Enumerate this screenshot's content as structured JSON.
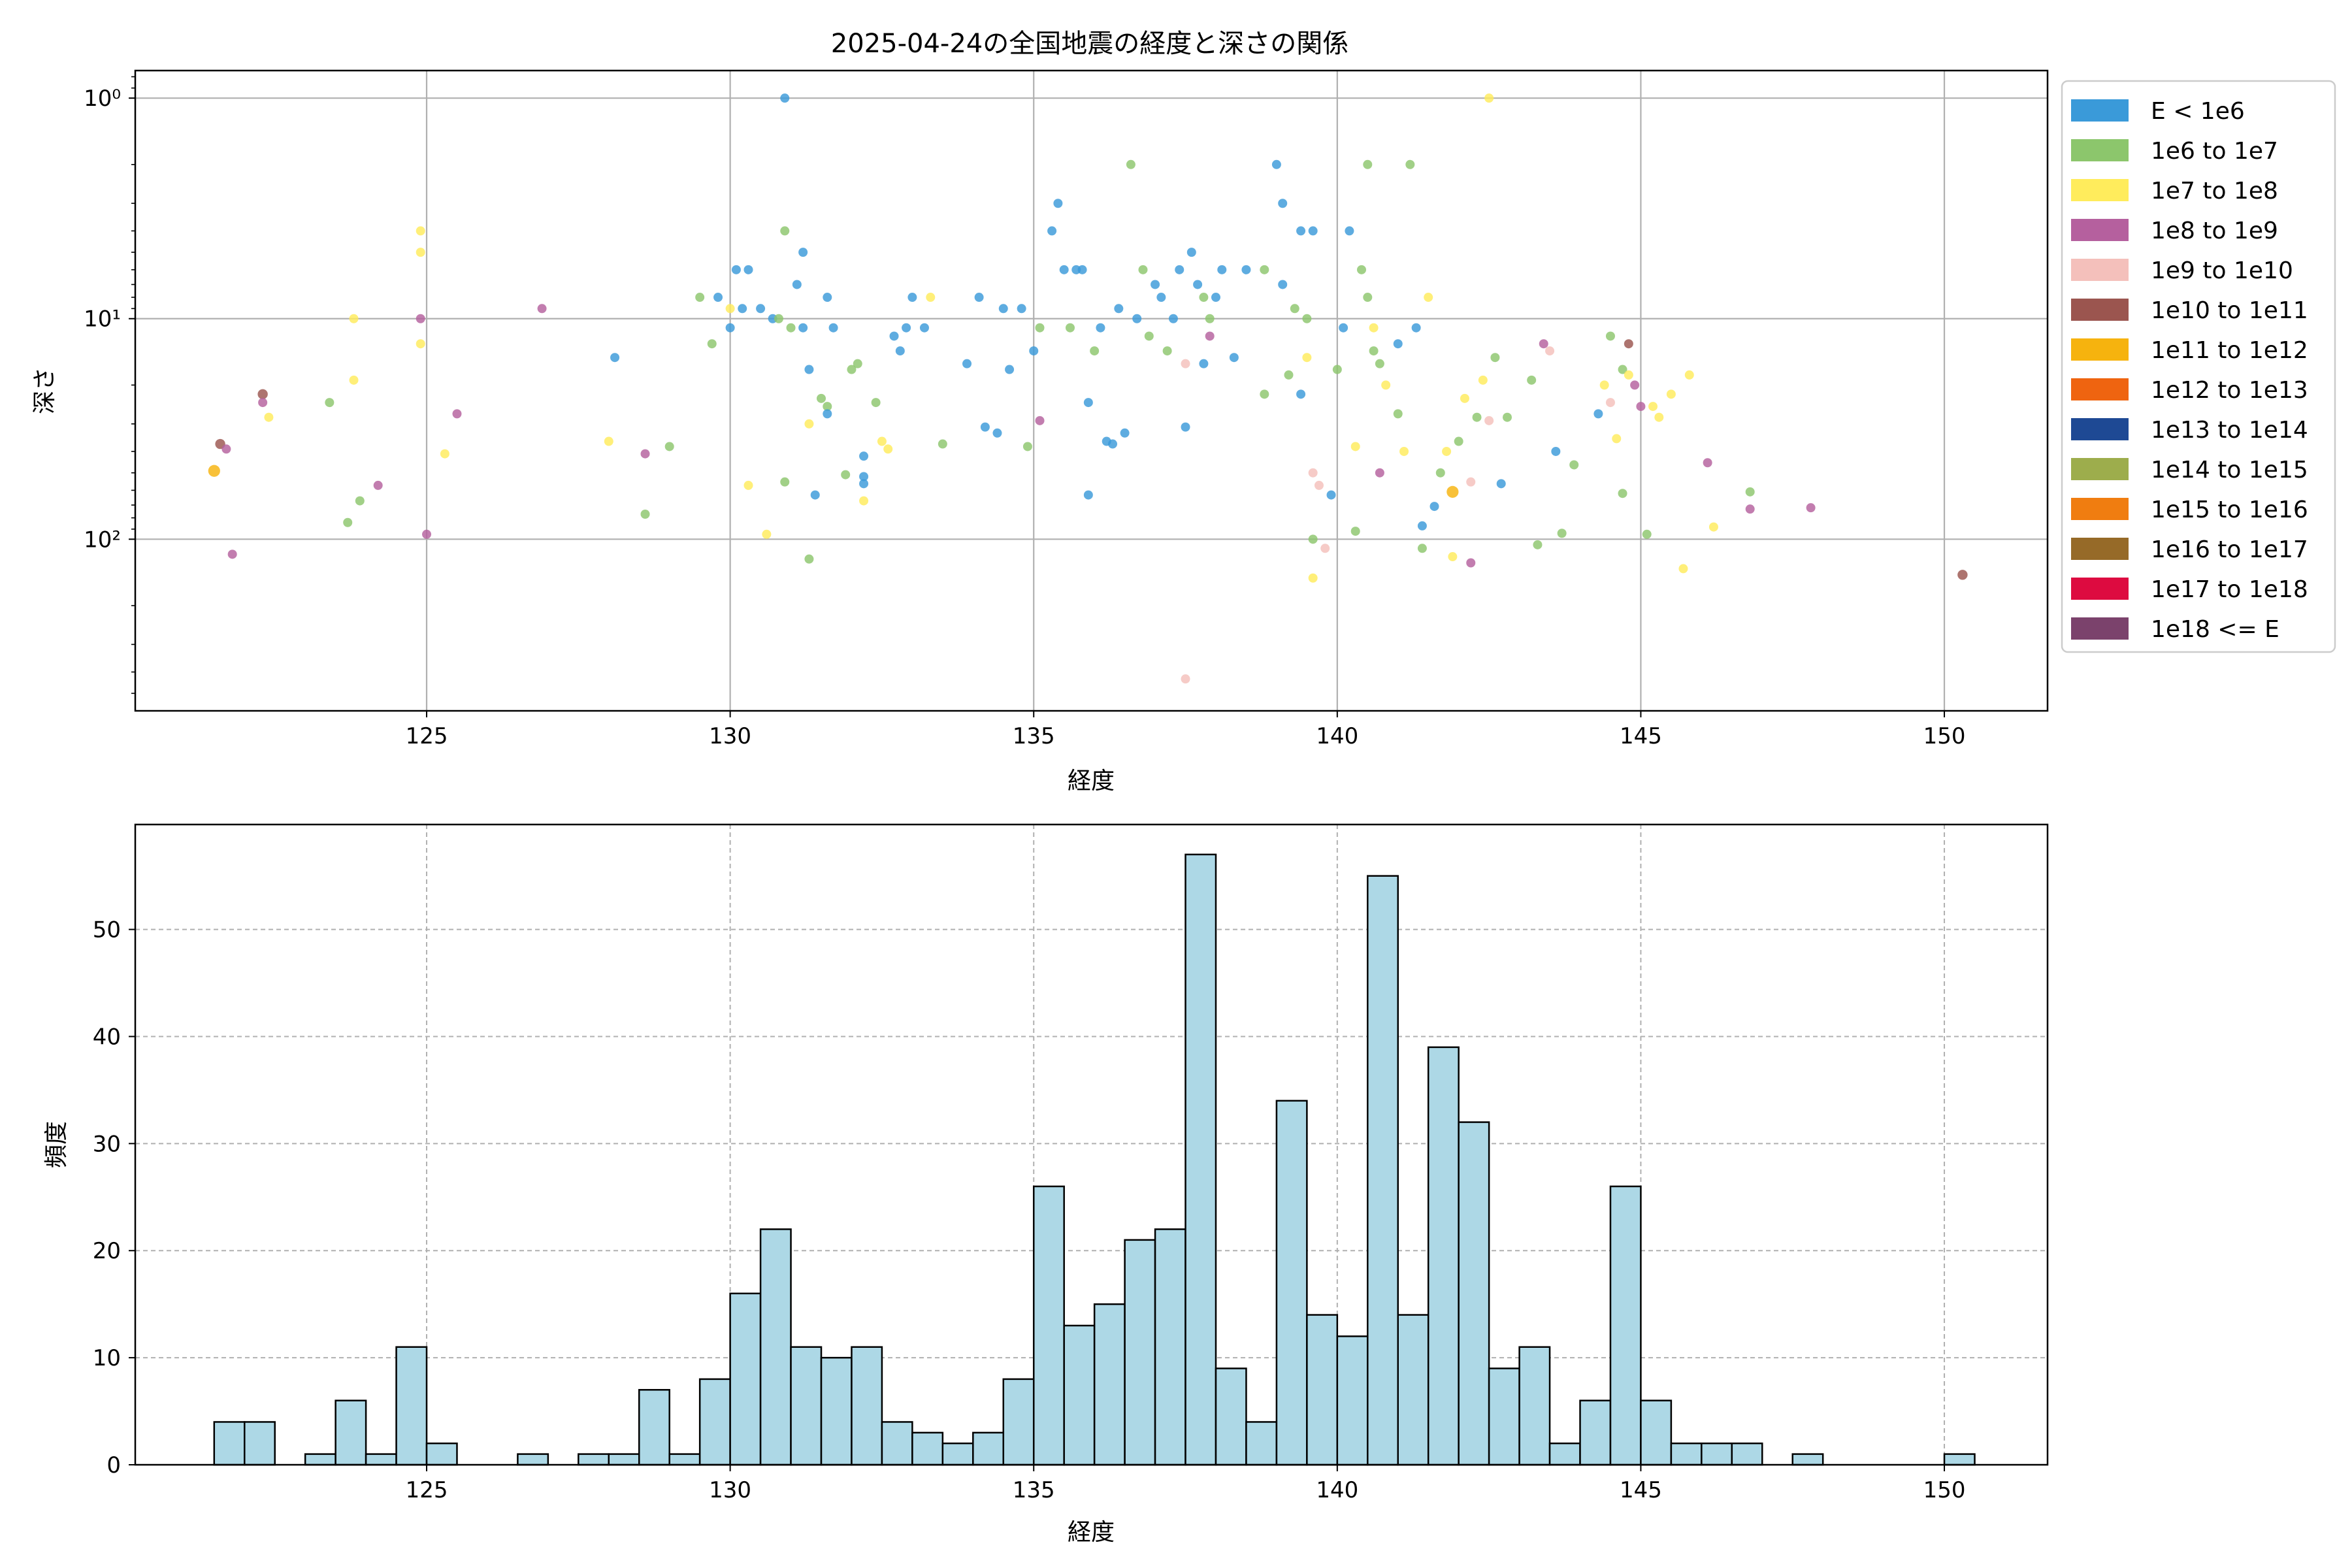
{
  "chart_data": [
    {
      "type": "scatter",
      "title": "2025-04-24の全国地震の経度と深さの関係",
      "xlabel": "経度",
      "ylabel": "深さ",
      "xlim": [
        120.2,
        151.7
      ],
      "ylim": [
        600,
        0.75
      ],
      "yscale": "log",
      "y_inverted": true,
      "xticks": [
        125,
        130,
        135,
        140,
        145,
        150
      ],
      "yticks": [
        {
          "value": 1,
          "label": "10⁰"
        },
        {
          "value": 10,
          "label": "10¹"
        },
        {
          "value": 100,
          "label": "10²"
        }
      ],
      "grid": true,
      "legend_position": "outside-right",
      "legend": [
        {
          "label": "E < 1e6",
          "color": "#3a9ad9"
        },
        {
          "label": "1e6 to 1e7",
          "color": "#8cc66c"
        },
        {
          "label": "1e7 to 1e8",
          "color": "#ffec5c"
        },
        {
          "label": "1e8 to 1e9",
          "color": "#b5609e"
        },
        {
          "label": "1e9 to 1e10",
          "color": "#f4c0bb"
        },
        {
          "label": "1e10 to 1e11",
          "color": "#9b554f"
        },
        {
          "label": "1e11 to 1e12",
          "color": "#f6b30e"
        },
        {
          "label": "1e12 to 1e13",
          "color": "#ef6410"
        },
        {
          "label": "1e13 to 1e14",
          "color": "#1e4994"
        },
        {
          "label": "1e14 to 1e15",
          "color": "#9dad4c"
        },
        {
          "label": "1e15 to 1e16",
          "color": "#f07d10"
        },
        {
          "label": "1e16 to 1e17",
          "color": "#966a28"
        },
        {
          "label": "1e17 to 1e18",
          "color": "#dd0b40"
        },
        {
          "label": "1e18 <= E",
          "color": "#7b426c"
        }
      ],
      "points": [
        {
          "x": 121.5,
          "y": 49,
          "c": 6,
          "s": 1.3
        },
        {
          "x": 121.6,
          "y": 37,
          "c": 5,
          "s": 1.1
        },
        {
          "x": 121.7,
          "y": 39,
          "c": 3
        },
        {
          "x": 121.8,
          "y": 117,
          "c": 3
        },
        {
          "x": 122.3,
          "y": 22,
          "c": 5,
          "s": 1.1
        },
        {
          "x": 122.3,
          "y": 24,
          "c": 3
        },
        {
          "x": 122.4,
          "y": 28,
          "c": 2
        },
        {
          "x": 123.4,
          "y": 24,
          "c": 1
        },
        {
          "x": 123.7,
          "y": 84,
          "c": 1
        },
        {
          "x": 123.8,
          "y": 10,
          "c": 2
        },
        {
          "x": 123.8,
          "y": 19,
          "c": 2
        },
        {
          "x": 123.9,
          "y": 67,
          "c": 1
        },
        {
          "x": 124.2,
          "y": 57,
          "c": 3
        },
        {
          "x": 124.9,
          "y": 4,
          "c": 2
        },
        {
          "x": 124.9,
          "y": 5,
          "c": 2
        },
        {
          "x": 124.9,
          "y": 10,
          "c": 3
        },
        {
          "x": 124.9,
          "y": 13,
          "c": 2
        },
        {
          "x": 125.0,
          "y": 95,
          "c": 3
        },
        {
          "x": 125.3,
          "y": 41,
          "c": 2
        },
        {
          "x": 125.5,
          "y": 27,
          "c": 3
        },
        {
          "x": 126.9,
          "y": 9,
          "c": 3
        },
        {
          "x": 128.0,
          "y": 36,
          "c": 2
        },
        {
          "x": 128.1,
          "y": 15,
          "c": 0
        },
        {
          "x": 128.6,
          "y": 41,
          "c": 3
        },
        {
          "x": 128.6,
          "y": 77,
          "c": 1
        },
        {
          "x": 129.0,
          "y": 38,
          "c": 1
        },
        {
          "x": 129.5,
          "y": 8,
          "c": 1
        },
        {
          "x": 129.7,
          "y": 13,
          "c": 1
        },
        {
          "x": 129.8,
          "y": 8,
          "c": 0
        },
        {
          "x": 130.0,
          "y": 9,
          "c": 2
        },
        {
          "x": 130.0,
          "y": 11,
          "c": 0
        },
        {
          "x": 130.1,
          "y": 6,
          "c": 0
        },
        {
          "x": 130.2,
          "y": 9,
          "c": 0
        },
        {
          "x": 130.3,
          "y": 57,
          "c": 2
        },
        {
          "x": 130.3,
          "y": 6,
          "c": 0
        },
        {
          "x": 130.5,
          "y": 9,
          "c": 0
        },
        {
          "x": 130.6,
          "y": 95,
          "c": 2
        },
        {
          "x": 130.7,
          "y": 10,
          "c": 0
        },
        {
          "x": 130.8,
          "y": 10,
          "c": 1
        },
        {
          "x": 130.9,
          "y": 4,
          "c": 1
        },
        {
          "x": 130.9,
          "y": 55,
          "c": 1
        },
        {
          "x": 130.9,
          "y": 1,
          "c": 0
        },
        {
          "x": 131.0,
          "y": 11,
          "c": 1
        },
        {
          "x": 131.1,
          "y": 7,
          "c": 0
        },
        {
          "x": 131.2,
          "y": 5,
          "c": 0
        },
        {
          "x": 131.2,
          "y": 11,
          "c": 0
        },
        {
          "x": 131.3,
          "y": 123,
          "c": 1
        },
        {
          "x": 131.3,
          "y": 30,
          "c": 2
        },
        {
          "x": 131.3,
          "y": 17,
          "c": 0
        },
        {
          "x": 131.4,
          "y": 63,
          "c": 0
        },
        {
          "x": 131.5,
          "y": 23,
          "c": 1
        },
        {
          "x": 131.6,
          "y": 25,
          "c": 1
        },
        {
          "x": 131.6,
          "y": 27,
          "c": 0
        },
        {
          "x": 131.6,
          "y": 8,
          "c": 0
        },
        {
          "x": 131.7,
          "y": 11,
          "c": 0
        },
        {
          "x": 131.9,
          "y": 51,
          "c": 1
        },
        {
          "x": 132.0,
          "y": 17,
          "c": 1
        },
        {
          "x": 132.1,
          "y": 16,
          "c": 1
        },
        {
          "x": 132.2,
          "y": 42,
          "c": 0
        },
        {
          "x": 132.2,
          "y": 52,
          "c": 0
        },
        {
          "x": 132.2,
          "y": 56,
          "c": 0
        },
        {
          "x": 132.2,
          "y": 67,
          "c": 2
        },
        {
          "x": 132.4,
          "y": 24,
          "c": 1
        },
        {
          "x": 132.5,
          "y": 36,
          "c": 2
        },
        {
          "x": 132.6,
          "y": 39,
          "c": 2
        },
        {
          "x": 132.7,
          "y": 12,
          "c": 0
        },
        {
          "x": 132.8,
          "y": 14,
          "c": 0
        },
        {
          "x": 132.9,
          "y": 11,
          "c": 0
        },
        {
          "x": 133.0,
          "y": 8,
          "c": 0
        },
        {
          "x": 133.2,
          "y": 11,
          "c": 0
        },
        {
          "x": 133.3,
          "y": 8,
          "c": 2
        },
        {
          "x": 133.5,
          "y": 37,
          "c": 1
        },
        {
          "x": 133.9,
          "y": 16,
          "c": 0
        },
        {
          "x": 134.1,
          "y": 8,
          "c": 0
        },
        {
          "x": 134.2,
          "y": 31,
          "c": 0
        },
        {
          "x": 134.4,
          "y": 33,
          "c": 0
        },
        {
          "x": 134.5,
          "y": 9,
          "c": 0
        },
        {
          "x": 134.6,
          "y": 17,
          "c": 0
        },
        {
          "x": 134.8,
          "y": 9,
          "c": 0
        },
        {
          "x": 134.9,
          "y": 38,
          "c": 1
        },
        {
          "x": 135.0,
          "y": 14,
          "c": 0
        },
        {
          "x": 135.1,
          "y": 11,
          "c": 1
        },
        {
          "x": 135.1,
          "y": 29,
          "c": 3
        },
        {
          "x": 135.3,
          "y": 4,
          "c": 0
        },
        {
          "x": 135.4,
          "y": 3,
          "c": 0
        },
        {
          "x": 135.5,
          "y": 6,
          "c": 0
        },
        {
          "x": 135.6,
          "y": 11,
          "c": 1
        },
        {
          "x": 135.7,
          "y": 6,
          "c": 0
        },
        {
          "x": 135.8,
          "y": 6,
          "c": 0
        },
        {
          "x": 135.9,
          "y": 24,
          "c": 0
        },
        {
          "x": 135.9,
          "y": 63,
          "c": 0
        },
        {
          "x": 136.0,
          "y": 14,
          "c": 1
        },
        {
          "x": 136.1,
          "y": 11,
          "c": 0
        },
        {
          "x": 136.2,
          "y": 36,
          "c": 0
        },
        {
          "x": 136.3,
          "y": 37,
          "c": 0
        },
        {
          "x": 136.4,
          "y": 9,
          "c": 0
        },
        {
          "x": 136.5,
          "y": 33,
          "c": 0
        },
        {
          "x": 136.6,
          "y": 2,
          "c": 1
        },
        {
          "x": 136.7,
          "y": 10,
          "c": 0
        },
        {
          "x": 136.8,
          "y": 6,
          "c": 1
        },
        {
          "x": 136.9,
          "y": 12,
          "c": 1
        },
        {
          "x": 137.0,
          "y": 7,
          "c": 0
        },
        {
          "x": 137.1,
          "y": 8,
          "c": 0
        },
        {
          "x": 137.2,
          "y": 14,
          "c": 1
        },
        {
          "x": 137.3,
          "y": 10,
          "c": 0
        },
        {
          "x": 137.4,
          "y": 6,
          "c": 0
        },
        {
          "x": 137.5,
          "y": 31,
          "c": 0
        },
        {
          "x": 137.5,
          "y": 16,
          "c": 4
        },
        {
          "x": 137.5,
          "y": 430,
          "c": 4
        },
        {
          "x": 137.6,
          "y": 5,
          "c": 0
        },
        {
          "x": 137.7,
          "y": 7,
          "c": 0
        },
        {
          "x": 137.8,
          "y": 8,
          "c": 1
        },
        {
          "x": 137.8,
          "y": 16,
          "c": 0
        },
        {
          "x": 137.9,
          "y": 10,
          "c": 1
        },
        {
          "x": 137.9,
          "y": 12,
          "c": 3
        },
        {
          "x": 138.0,
          "y": 8,
          "c": 0
        },
        {
          "x": 138.1,
          "y": 6,
          "c": 0
        },
        {
          "x": 138.3,
          "y": 15,
          "c": 0
        },
        {
          "x": 138.5,
          "y": 6,
          "c": 0
        },
        {
          "x": 138.8,
          "y": 6,
          "c": 1
        },
        {
          "x": 138.8,
          "y": 22,
          "c": 1
        },
        {
          "x": 139.0,
          "y": 2,
          "c": 0
        },
        {
          "x": 139.1,
          "y": 3,
          "c": 0
        },
        {
          "x": 139.1,
          "y": 7,
          "c": 0
        },
        {
          "x": 139.2,
          "y": 18,
          "c": 1
        },
        {
          "x": 139.3,
          "y": 9,
          "c": 1
        },
        {
          "x": 139.4,
          "y": 4,
          "c": 0
        },
        {
          "x": 139.4,
          "y": 22,
          "c": 0
        },
        {
          "x": 139.5,
          "y": 10,
          "c": 1
        },
        {
          "x": 139.5,
          "y": 15,
          "c": 2
        },
        {
          "x": 139.6,
          "y": 4,
          "c": 0
        },
        {
          "x": 139.6,
          "y": 50,
          "c": 4
        },
        {
          "x": 139.6,
          "y": 100,
          "c": 1
        },
        {
          "x": 139.6,
          "y": 150,
          "c": 2
        },
        {
          "x": 139.7,
          "y": 57,
          "c": 4
        },
        {
          "x": 139.8,
          "y": 110,
          "c": 4
        },
        {
          "x": 139.9,
          "y": 63,
          "c": 0
        },
        {
          "x": 140.0,
          "y": 17,
          "c": 1
        },
        {
          "x": 140.1,
          "y": 11,
          "c": 0
        },
        {
          "x": 140.2,
          "y": 4,
          "c": 0
        },
        {
          "x": 140.3,
          "y": 38,
          "c": 2
        },
        {
          "x": 140.3,
          "y": 92,
          "c": 1
        },
        {
          "x": 140.4,
          "y": 6,
          "c": 1
        },
        {
          "x": 140.5,
          "y": 8,
          "c": 1
        },
        {
          "x": 140.5,
          "y": 2,
          "c": 1
        },
        {
          "x": 140.6,
          "y": 11,
          "c": 2
        },
        {
          "x": 140.6,
          "y": 14,
          "c": 1
        },
        {
          "x": 140.7,
          "y": 50,
          "c": 3
        },
        {
          "x": 140.7,
          "y": 16,
          "c": 1
        },
        {
          "x": 140.8,
          "y": 20,
          "c": 2
        },
        {
          "x": 141.0,
          "y": 13,
          "c": 0
        },
        {
          "x": 141.0,
          "y": 27,
          "c": 1
        },
        {
          "x": 141.1,
          "y": 40,
          "c": 2
        },
        {
          "x": 141.2,
          "y": 2,
          "c": 1
        },
        {
          "x": 141.3,
          "y": 11,
          "c": 0
        },
        {
          "x": 141.4,
          "y": 87,
          "c": 0
        },
        {
          "x": 141.4,
          "y": 110,
          "c": 1
        },
        {
          "x": 141.5,
          "y": 8,
          "c": 2
        },
        {
          "x": 141.6,
          "y": 71,
          "c": 0
        },
        {
          "x": 141.7,
          "y": 50,
          "c": 1
        },
        {
          "x": 141.8,
          "y": 40,
          "c": 2
        },
        {
          "x": 141.9,
          "y": 61,
          "c": 6,
          "s": 1.3
        },
        {
          "x": 141.9,
          "y": 120,
          "c": 2
        },
        {
          "x": 142.0,
          "y": 36,
          "c": 1
        },
        {
          "x": 142.1,
          "y": 23,
          "c": 2
        },
        {
          "x": 142.2,
          "y": 128,
          "c": 3
        },
        {
          "x": 142.2,
          "y": 55,
          "c": 4
        },
        {
          "x": 142.3,
          "y": 28,
          "c": 1
        },
        {
          "x": 142.4,
          "y": 19,
          "c": 2
        },
        {
          "x": 142.5,
          "y": 29,
          "c": 4
        },
        {
          "x": 142.6,
          "y": 15,
          "c": 1
        },
        {
          "x": 142.7,
          "y": 56,
          "c": 0
        },
        {
          "x": 142.8,
          "y": 28,
          "c": 1
        },
        {
          "x": 143.2,
          "y": 19,
          "c": 1
        },
        {
          "x": 143.3,
          "y": 106,
          "c": 1
        },
        {
          "x": 143.4,
          "y": 13,
          "c": 3
        },
        {
          "x": 143.5,
          "y": 14,
          "c": 4
        },
        {
          "x": 143.6,
          "y": 40,
          "c": 0
        },
        {
          "x": 143.7,
          "y": 94,
          "c": 1
        },
        {
          "x": 143.9,
          "y": 46,
          "c": 1
        },
        {
          "x": 144.3,
          "y": 27,
          "c": 0
        },
        {
          "x": 144.4,
          "y": 20,
          "c": 2
        },
        {
          "x": 144.5,
          "y": 24,
          "c": 4
        },
        {
          "x": 144.5,
          "y": 12,
          "c": 1
        },
        {
          "x": 144.6,
          "y": 35,
          "c": 2
        },
        {
          "x": 144.7,
          "y": 17,
          "c": 1
        },
        {
          "x": 144.7,
          "y": 62,
          "c": 1
        },
        {
          "x": 144.8,
          "y": 13,
          "c": 5
        },
        {
          "x": 144.8,
          "y": 18,
          "c": 2
        },
        {
          "x": 144.9,
          "y": 20,
          "c": 3
        },
        {
          "x": 145.0,
          "y": 25,
          "c": 3
        },
        {
          "x": 145.1,
          "y": 95,
          "c": 1
        },
        {
          "x": 145.2,
          "y": 25,
          "c": 2
        },
        {
          "x": 145.3,
          "y": 28,
          "c": 2
        },
        {
          "x": 145.5,
          "y": 22,
          "c": 2
        },
        {
          "x": 145.7,
          "y": 136,
          "c": 2
        },
        {
          "x": 145.8,
          "y": 18,
          "c": 2
        },
        {
          "x": 146.1,
          "y": 45,
          "c": 3
        },
        {
          "x": 146.2,
          "y": 88,
          "c": 2
        },
        {
          "x": 146.8,
          "y": 61,
          "c": 1
        },
        {
          "x": 146.8,
          "y": 73,
          "c": 3
        },
        {
          "x": 147.8,
          "y": 72,
          "c": 3
        },
        {
          "x": 150.3,
          "y": 145,
          "c": 5,
          "s": 1.1
        },
        {
          "x": 142.5,
          "y": 1,
          "c": 2
        }
      ]
    },
    {
      "type": "bar",
      "subtype": "histogram",
      "xlabel": "経度",
      "ylabel": "頻度",
      "xlim": [
        120.2,
        151.7
      ],
      "ylim": [
        0,
        59.8
      ],
      "xticks": [
        125,
        130,
        135,
        140,
        145,
        150
      ],
      "yticks": [
        0,
        10,
        20,
        30,
        40,
        50
      ],
      "grid": true,
      "bar_color": "#add8e6",
      "edge_color": "#000000",
      "bin_start": 121.5,
      "bin_width": 0.5,
      "values": [
        4,
        4,
        0,
        1,
        6,
        1,
        11,
        2,
        0,
        0,
        1,
        0,
        1,
        1,
        7,
        1,
        8,
        16,
        22,
        11,
        10,
        11,
        4,
        3,
        2,
        3,
        8,
        26,
        13,
        15,
        21,
        22,
        57,
        9,
        4,
        34,
        14,
        12,
        55,
        14,
        39,
        32,
        9,
        11,
        2,
        6,
        26,
        6,
        2,
        2,
        2,
        0,
        1,
        0,
        0,
        0,
        0,
        1
      ]
    }
  ]
}
